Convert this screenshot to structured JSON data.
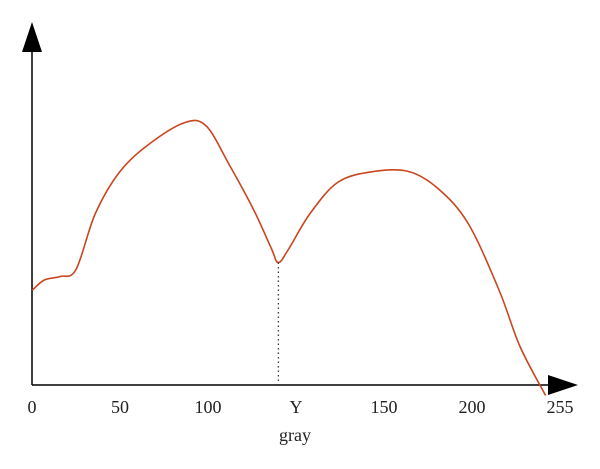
{
  "chart_data": {
    "type": "line",
    "x_label": "gray",
    "xlim": [
      0,
      255
    ],
    "xticks": [
      0,
      50,
      100,
      150,
      200,
      255
    ],
    "ylim": [
      0,
      100
    ],
    "threshold": {
      "value": 120,
      "label": "Y"
    },
    "series": [
      {
        "color": "#c8461e",
        "x": [
          0,
          7,
          16,
          25,
          36,
          50,
          67,
          87,
          99,
          106,
          113,
          118,
          120,
          123,
          129,
          137,
          147,
          164,
          181,
          198,
          217,
          230,
          246
        ],
        "values": [
          27,
          30,
          31,
          33,
          49,
          61,
          69,
          75,
          74,
          63,
          50,
          39,
          35,
          39,
          49,
          58,
          61,
          61,
          56,
          46,
          27,
          11,
          -3
        ]
      }
    ]
  }
}
